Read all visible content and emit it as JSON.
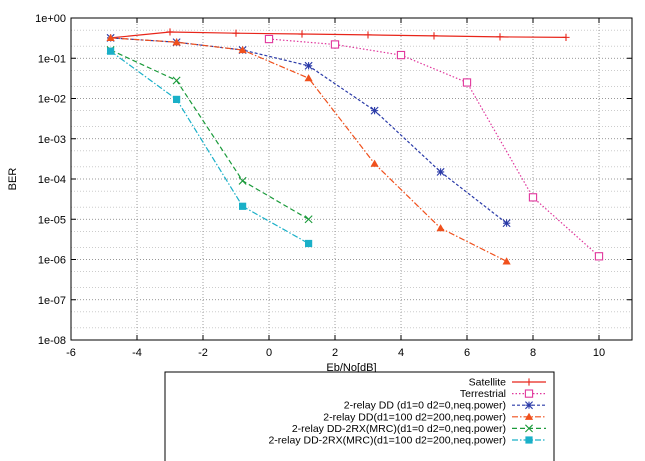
{
  "chart_data": {
    "type": "line",
    "title": "",
    "xlabel": "Eb/No[dB]",
    "ylabel": "BER",
    "xlim": [
      -6,
      11
    ],
    "ylim": [
      1e-08,
      1
    ],
    "y_scale": "log",
    "grid": true,
    "legend_position": "bottom-center",
    "x_ticks": [
      "-6",
      "-4",
      "-2",
      "0",
      "2",
      "4",
      "6",
      "8",
      "10"
    ],
    "y_ticks": [
      "1e-08",
      "1e-07",
      "1e-06",
      "1e-05",
      "1e-04",
      "1e-03",
      "1e-02",
      "1e-01",
      "1e+00"
    ],
    "series": [
      {
        "name": "Satellite",
        "color": "#e8251a",
        "dash": "solid",
        "marker": "plus",
        "points": [
          [
            -4.8,
            0.32
          ],
          [
            -3,
            0.45
          ],
          [
            -1,
            0.42
          ],
          [
            1,
            0.4
          ],
          [
            3,
            0.38
          ],
          [
            5,
            0.36
          ],
          [
            7,
            0.34
          ],
          [
            9,
            0.33
          ]
        ]
      },
      {
        "name": "Terrestrial",
        "color": "#e0369c",
        "dash": "dotted",
        "marker": "square-open",
        "points": [
          [
            0,
            0.3
          ],
          [
            2,
            0.22
          ],
          [
            4,
            0.12
          ],
          [
            6,
            0.025
          ],
          [
            8,
            3.5e-05
          ],
          [
            10,
            1.2e-06
          ]
        ]
      },
      {
        "name": "2-relay DD (d1=0 d2=0,neq.power)",
        "color": "#2a3aa8",
        "dash": "short-dash",
        "marker": "star",
        "points": [
          [
            -4.8,
            0.32
          ],
          [
            -2.8,
            0.25
          ],
          [
            -0.8,
            0.16
          ],
          [
            1.2,
            0.065
          ],
          [
            3.2,
            0.005
          ],
          [
            5.2,
            0.00015
          ],
          [
            7.2,
            8e-06
          ]
        ]
      },
      {
        "name": "2-relay DD(d1=100 d2=200,neq.power)",
        "color": "#f0501c",
        "dash": "dash-dot",
        "marker": "triangle",
        "points": [
          [
            -4.8,
            0.32
          ],
          [
            -2.8,
            0.25
          ],
          [
            -0.8,
            0.16
          ],
          [
            1.2,
            0.032
          ],
          [
            3.2,
            0.00024
          ],
          [
            5.2,
            6e-06
          ],
          [
            7.2,
            9e-07
          ]
        ]
      },
      {
        "name": "2-relay DD-2RX(MRC)(d1=0 d2=0,neq.power)",
        "color": "#1a9a3a",
        "dash": "dash",
        "marker": "x",
        "points": [
          [
            -4.8,
            0.16
          ],
          [
            -2.8,
            0.028
          ],
          [
            -0.8,
            9e-05
          ],
          [
            1.2,
            1e-05
          ]
        ]
      },
      {
        "name": "2-relay DD-2RX(MRC)(d1=100 d2=200,neq.power)",
        "color": "#1ab0c8",
        "dash": "dash-dot",
        "marker": "square-filled",
        "points": [
          [
            -4.8,
            0.15
          ],
          [
            -2.8,
            0.0095
          ],
          [
            -0.8,
            2.1e-05
          ],
          [
            1.2,
            2.5e-06
          ]
        ]
      }
    ]
  }
}
